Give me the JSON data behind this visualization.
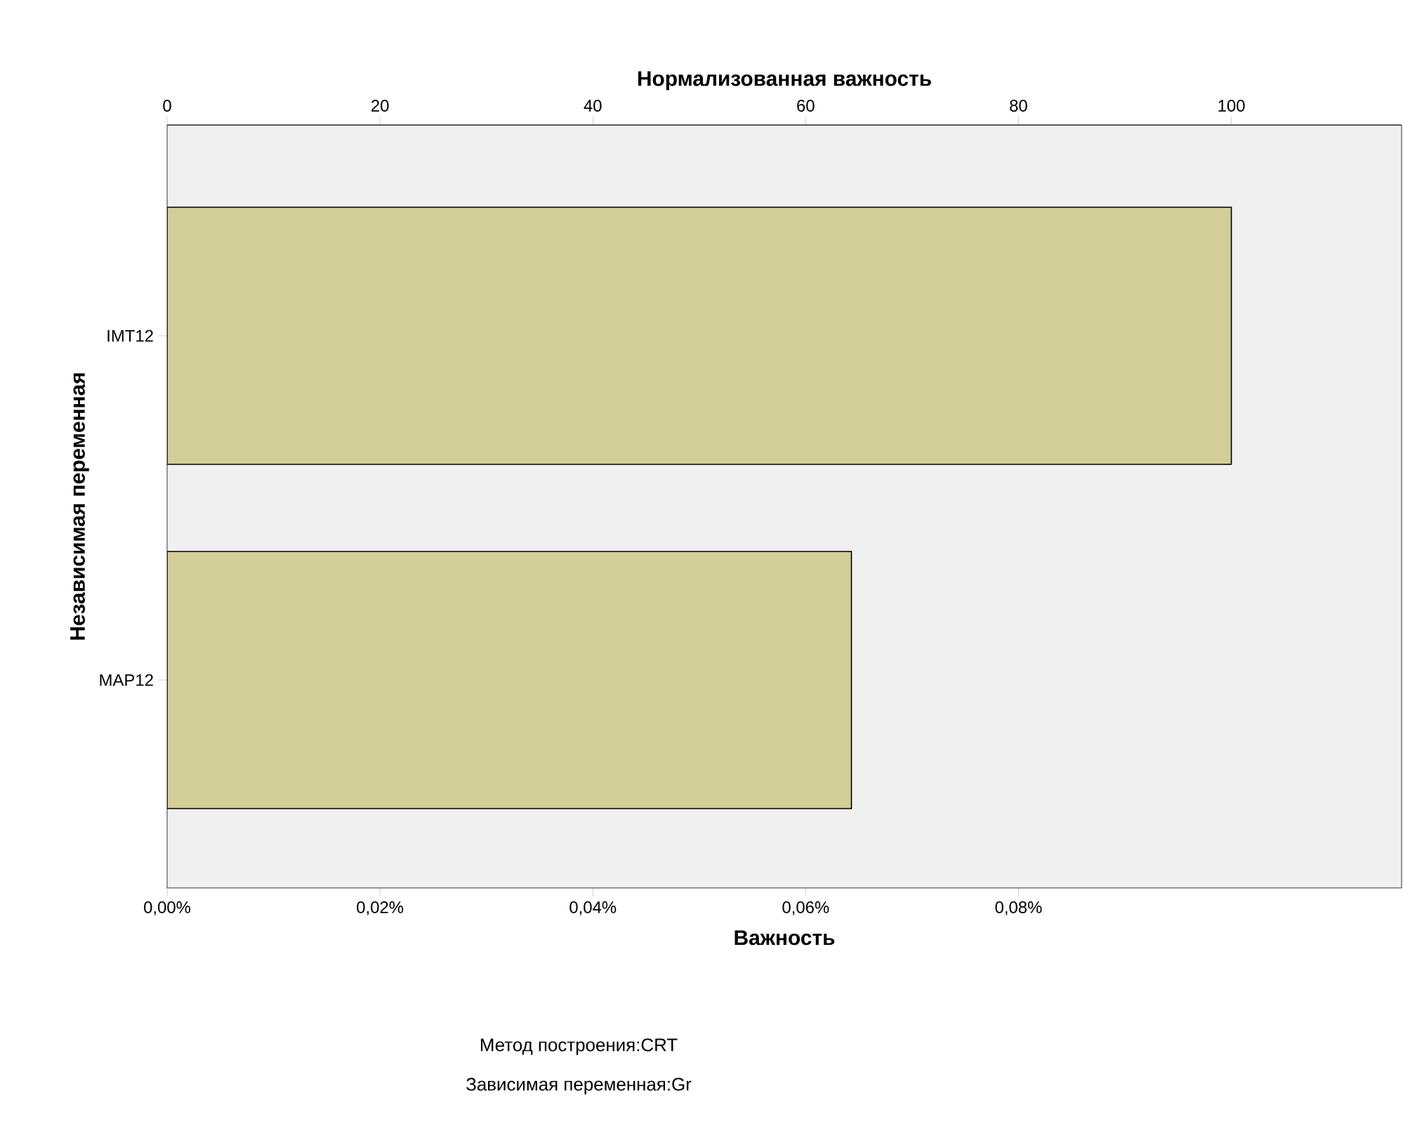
{
  "chart_data": {
    "type": "bar",
    "orientation": "horizontal",
    "x2label": "Нормализованная важность",
    "xlabel": "Важность",
    "ylabel": "Независимая переменная",
    "categories": [
      "IMT12",
      "MAP12"
    ],
    "values": [
      0.1,
      0.0643
    ],
    "color": "#d3ce97",
    "xlim": [
      0,
      0.116
    ],
    "xticks": [
      {
        "value": 0,
        "label": "0,00%"
      },
      {
        "value": 0.02,
        "label": "0,02%"
      },
      {
        "value": 0.04,
        "label": "0,04%"
      },
      {
        "value": 0.06,
        "label": "0,06%"
      },
      {
        "value": 0.08,
        "label": "0,08%"
      }
    ],
    "x2lim": [
      0,
      116
    ],
    "x2ticks": [
      0,
      20,
      40,
      60,
      80,
      100
    ],
    "annotations": [
      "Метод построения:CRT",
      "Зависимая переменная:Gr"
    ]
  }
}
